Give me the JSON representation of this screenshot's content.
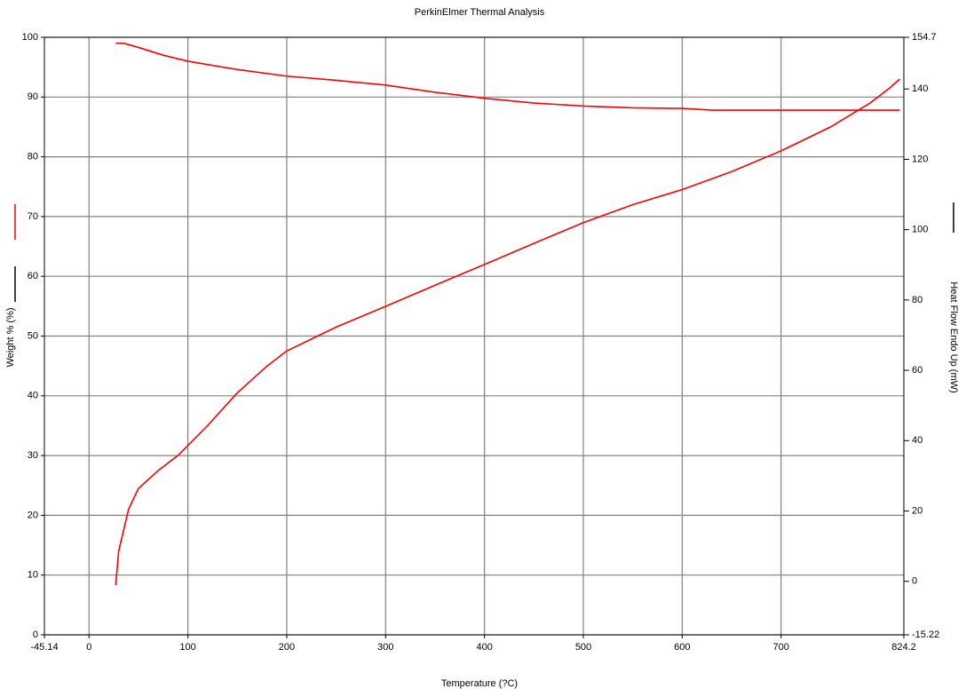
{
  "chart_data": {
    "type": "line",
    "title": "PerkinElmer Thermal Analysis",
    "x_label": "Temperature (?C)",
    "y_label": "Weight % (%)",
    "y2_label": "Heat Flow Endo Up (mW)",
    "xlim": [
      -45.14,
      824.2
    ],
    "xticks": [
      -45.14,
      0,
      100,
      200,
      300,
      400,
      500,
      600,
      700,
      824.2
    ],
    "ylim": [
      0,
      100
    ],
    "yticks": [
      0,
      10,
      20,
      30,
      40,
      50,
      60,
      70,
      80,
      90,
      100
    ],
    "y2lim": [
      -15.22,
      154.7
    ],
    "y2ticks": [
      -15.22,
      0,
      20,
      40,
      60,
      80,
      100,
      120,
      140,
      154.7
    ],
    "grid": true,
    "series": [
      {
        "color": "#ff0000",
        "axis": "y",
        "x": [
          27,
          35,
          50,
          75,
          100,
          150,
          200,
          250,
          300,
          350,
          400,
          450,
          500,
          550,
          600,
          630,
          700,
          760,
          820
        ],
        "values": [
          99,
          99,
          98.3,
          97,
          96,
          94.6,
          93.5,
          92.8,
          92,
          90.8,
          89.8,
          89,
          88.5,
          88.2,
          88.1,
          87.8,
          87.8,
          87.8,
          87.8
        ]
      },
      {
        "color": "#ff0000",
        "axis": "y2",
        "x": [
          27,
          30,
          40,
          50,
          70,
          90,
          120,
          150,
          180,
          200,
          250,
          300,
          350,
          400,
          450,
          500,
          550,
          600,
          650,
          700,
          750,
          790,
          810,
          820
        ],
        "values": [
          -1.1,
          8.6,
          20.5,
          26.4,
          31.5,
          35.8,
          44.3,
          53.6,
          61.2,
          65.5,
          72.3,
          78.2,
          84.2,
          90.1,
          96.1,
          102,
          107.1,
          111.4,
          116.5,
          122.4,
          129.2,
          136,
          140.3,
          142.8
        ]
      }
    ]
  }
}
